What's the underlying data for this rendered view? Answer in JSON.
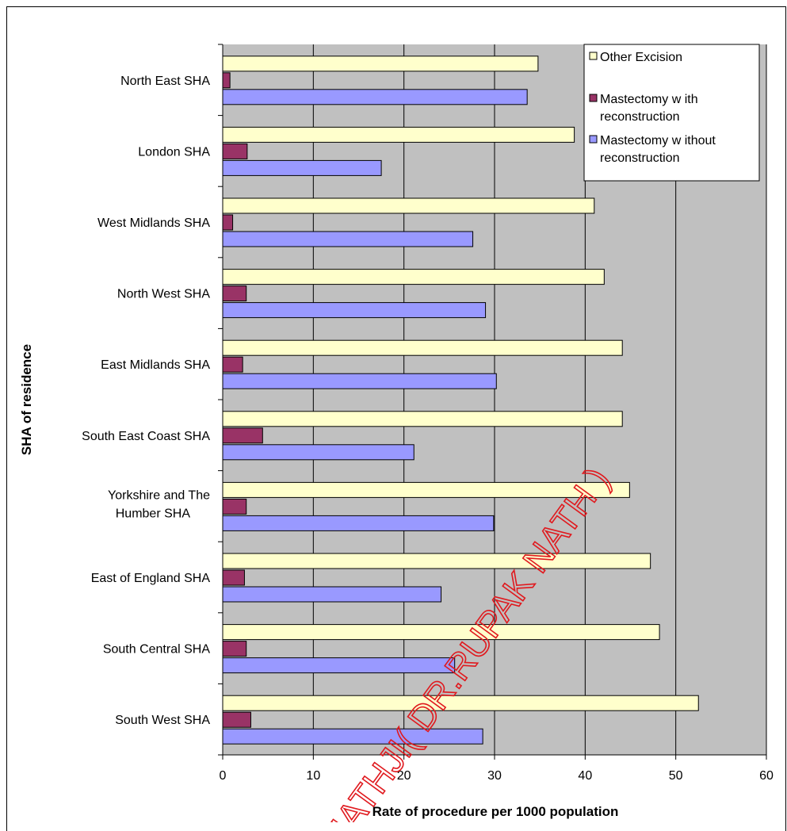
{
  "chart_data": {
    "type": "bar",
    "orientation": "horizontal",
    "categories": [
      "North East SHA",
      "London SHA",
      "West Midlands SHA",
      "North West SHA",
      "East Midlands SHA",
      "South East Coast SHA",
      "Yorkshire and The Humber SHA",
      "East of England SHA",
      "South Central SHA",
      "South West SHA"
    ],
    "category_lines": [
      [
        "North East SHA"
      ],
      [
        "London SHA"
      ],
      [
        "West Midlands SHA"
      ],
      [
        "North West SHA"
      ],
      [
        "East Midlands SHA"
      ],
      [
        "South East Coast SHA"
      ],
      [
        "Yorkshire and The",
        "Humber SHA"
      ],
      [
        "East of England SHA"
      ],
      [
        "South Central SHA"
      ],
      [
        "South West SHA"
      ]
    ],
    "series": [
      {
        "name": "Other Excision",
        "legend_lines": [
          "Other Excision"
        ],
        "color": "#ffffcc",
        "values": [
          34.8,
          38.8,
          41.0,
          42.1,
          44.1,
          44.1,
          44.9,
          47.2,
          48.2,
          52.5
        ]
      },
      {
        "name": "Mastectomy with reconstruction",
        "legend_lines": [
          "Mastectomy w ith",
          "reconstruction"
        ],
        "color": "#993366",
        "values": [
          0.8,
          2.7,
          1.1,
          2.6,
          2.2,
          4.4,
          2.6,
          2.4,
          2.6,
          3.1
        ]
      },
      {
        "name": "Mastectomy without reconstruction",
        "legend_lines": [
          "Mastectomy w ithout",
          "reconstruction"
        ],
        "color": "#9999ff",
        "values": [
          33.6,
          17.5,
          27.6,
          29.0,
          30.2,
          21.1,
          29.9,
          24.1,
          25.6,
          28.7
        ]
      }
    ],
    "xlim": [
      0,
      60
    ],
    "xticks": [
      0,
      10,
      20,
      30,
      40,
      50,
      60
    ],
    "xlabel": "Rate of procedure per 1000 population",
    "ylabel": "SHA of residence",
    "plot_background": "#c0c0c0",
    "gridlines": "vertical",
    "legend_position": "top-right"
  },
  "watermark": {
    "text": "NATHJI( DR.RUPAK NATH )",
    "color": "#e0191e"
  }
}
